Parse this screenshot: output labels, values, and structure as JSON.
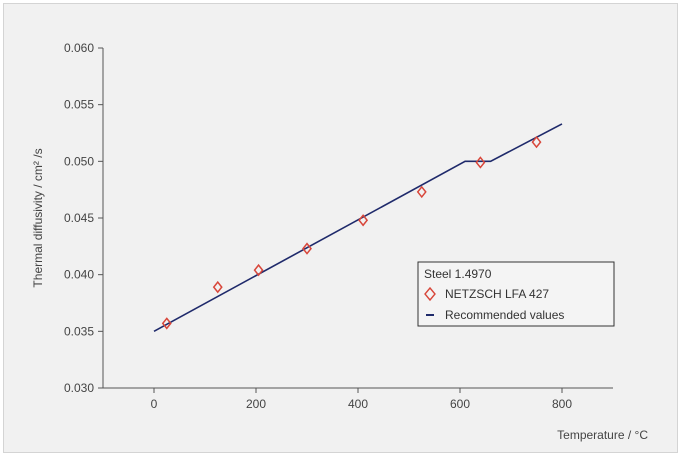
{
  "chart_data": {
    "type": "scatter",
    "x_axis": {
      "label": "Temperature / °C",
      "range": [
        -100,
        900
      ],
      "ticks": [
        0,
        200,
        400,
        600,
        800
      ]
    },
    "y_axis": {
      "label": "Thermal diffusivity / cm² /s",
      "range": [
        0.03,
        0.06
      ],
      "ticks": [
        "0.030",
        "0.035",
        "0.040",
        "0.045",
        "0.050",
        "0.055",
        "0.060"
      ]
    },
    "grid": false,
    "legend": {
      "placement": "right",
      "title": "Steel 1.4970",
      "entries": [
        {
          "label": "NETZSCH LFA 427",
          "marker": "diamond",
          "color": "#d8463a"
        },
        {
          "label": "Recommended values",
          "marker": "line",
          "color": "#1f2a6b"
        }
      ]
    },
    "series": [
      {
        "name": "NETZSCH LFA 427",
        "kind": "scatter",
        "color": "#d8463a",
        "points": [
          {
            "x": 25,
            "y": 0.0357
          },
          {
            "x": 125,
            "y": 0.0389
          },
          {
            "x": 205,
            "y": 0.0404
          },
          {
            "x": 300,
            "y": 0.0423
          },
          {
            "x": 410,
            "y": 0.0448
          },
          {
            "x": 525,
            "y": 0.0473
          },
          {
            "x": 640,
            "y": 0.0499
          },
          {
            "x": 750,
            "y": 0.0517
          }
        ]
      },
      {
        "name": "Recommended values",
        "kind": "line",
        "color": "#1f2a6b",
        "points": [
          {
            "x": 0,
            "y": 0.035
          },
          {
            "x": 610,
            "y": 0.05
          },
          {
            "x": 660,
            "y": 0.05
          },
          {
            "x": 800,
            "y": 0.0533
          }
        ]
      }
    ]
  }
}
